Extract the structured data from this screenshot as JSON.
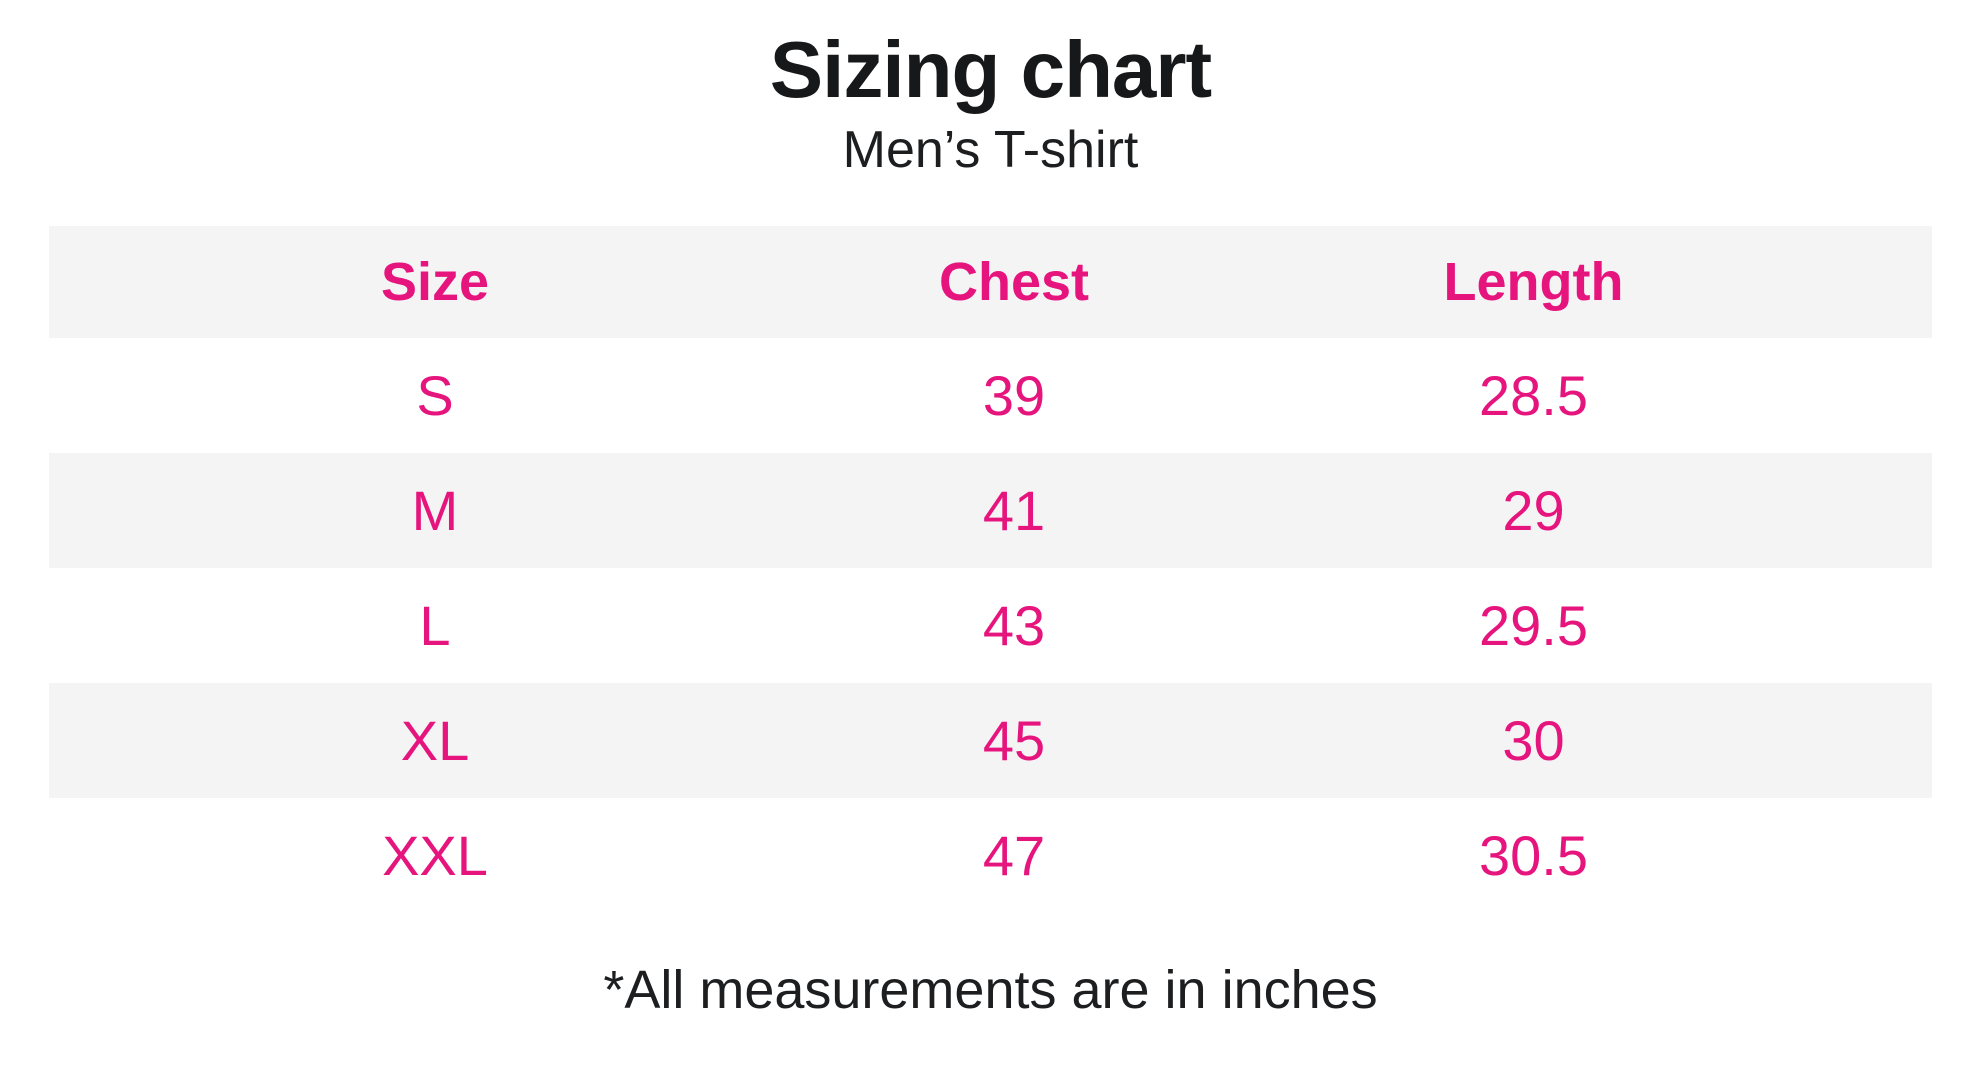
{
  "title": "Sizing chart",
  "subtitle": "Men’s T-shirt",
  "footnote": "*All measurements are in inches",
  "colors": {
    "accent_pink": "#E6157E",
    "stripe_gray": "#F4F4F5",
    "text_black": "#17181A",
    "background": "#FFFFFF"
  },
  "chart_data": {
    "type": "table",
    "title": "Sizing chart",
    "subtitle": "Men’s T-shirt",
    "columns": [
      "Size",
      "Chest",
      "Length"
    ],
    "rows": [
      [
        "S",
        "39",
        "28.5"
      ],
      [
        "M",
        "41",
        "29"
      ],
      [
        "L",
        "43",
        "29.5"
      ],
      [
        "XL",
        "45",
        "30"
      ],
      [
        "XXL",
        "47",
        "30.5"
      ]
    ],
    "units": "inches",
    "note": "*All measurements are in inches",
    "layout_hints": {
      "row_striping": "header and even data rows shaded light gray",
      "text_alignment": "all cells centered",
      "header_style": "bold pink",
      "data_style": "regular pink"
    }
  }
}
